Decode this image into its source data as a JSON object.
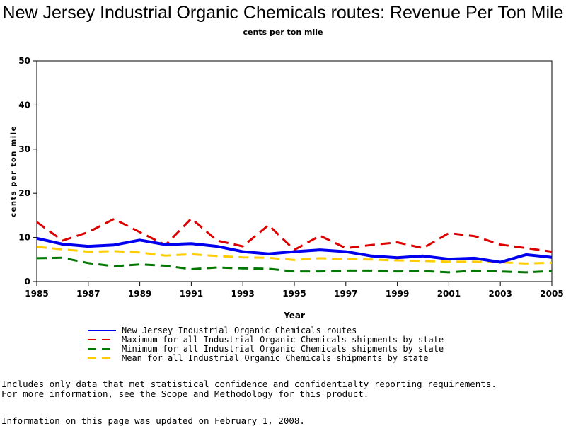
{
  "chart_data": {
    "type": "line",
    "title": "New Jersey Industrial Organic Chemicals routes: Revenue Per Ton Mile",
    "subtitle": "cents per ton mile",
    "xlabel": "Year",
    "ylabel": "cents per ton mile",
    "xlim": [
      1985,
      2005
    ],
    "ylim": [
      0,
      50
    ],
    "x_ticks": [
      1985,
      1987,
      1989,
      1991,
      1993,
      1995,
      1997,
      1999,
      2001,
      2003,
      2005
    ],
    "y_ticks": [
      0,
      10,
      20,
      30,
      40,
      50
    ],
    "grid": false,
    "legend_position": "bottom",
    "x": [
      1985,
      1986,
      1987,
      1988,
      1989,
      1990,
      1991,
      1992,
      1993,
      1994,
      1995,
      1996,
      1997,
      1998,
      1999,
      2000,
      2001,
      2002,
      2003,
      2004,
      2005
    ],
    "series": [
      {
        "name": "New Jersey Industrial Organic Chemicals routes",
        "color": "#0000ee",
        "style": "solid",
        "values": [
          9.8,
          8.5,
          8.0,
          8.3,
          9.4,
          8.4,
          8.6,
          8.0,
          6.8,
          6.3,
          6.8,
          7.2,
          6.8,
          5.8,
          5.4,
          5.8,
          5.1,
          5.3,
          4.4,
          6.1,
          5.5
        ]
      },
      {
        "name": "Maximum for all Industrial Organic Chemicals shipments by state",
        "color": "#dd0000",
        "style": "dashed",
        "values": [
          13.5,
          9.3,
          11.2,
          14.2,
          11.2,
          8.3,
          14.3,
          9.3,
          8.0,
          12.8,
          7.2,
          10.4,
          7.6,
          8.3,
          8.9,
          7.6,
          11.0,
          10.3,
          8.4,
          7.6,
          6.8
        ]
      },
      {
        "name": "Minimum for all Industrial Organic Chemicals shipments by state",
        "color": "#007700",
        "style": "dashed",
        "values": [
          5.3,
          5.4,
          4.2,
          3.5,
          3.9,
          3.6,
          2.8,
          3.2,
          3.0,
          2.9,
          2.3,
          2.3,
          2.5,
          2.5,
          2.3,
          2.4,
          2.1,
          2.5,
          2.3,
          2.1,
          2.4
        ]
      },
      {
        "name": "Mean for all Industrial Organic Chemicals shipments by state",
        "color": "#ffcc00",
        "style": "dashed",
        "values": [
          7.9,
          7.3,
          6.8,
          6.9,
          6.6,
          5.9,
          6.2,
          5.8,
          5.5,
          5.4,
          4.9,
          5.3,
          5.1,
          5.0,
          4.8,
          4.7,
          4.5,
          4.5,
          4.4,
          4.1,
          4.3
        ]
      }
    ]
  },
  "notes": {
    "line1": "Includes only data that met statistical confidence and confidentialty reporting requirements.",
    "line2": "For more information, see the Scope and Methodology for this product.",
    "updated": "Information on this page was updated on February 1, 2008."
  }
}
